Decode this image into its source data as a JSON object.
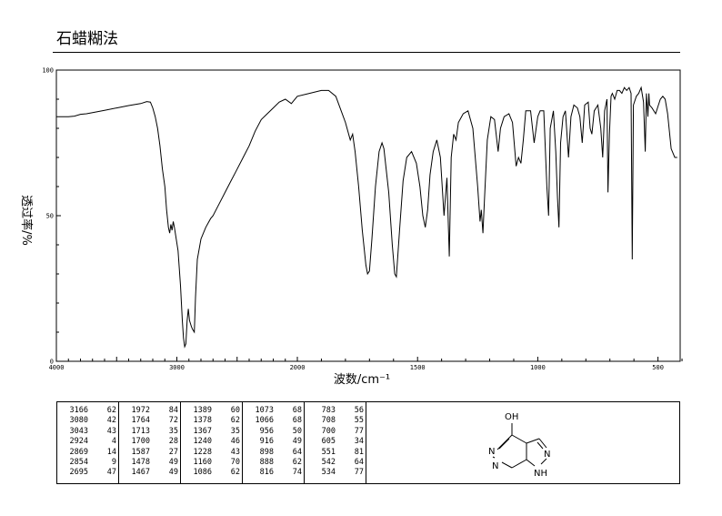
{
  "header": {
    "title": "石蜡糊法"
  },
  "chart_data": {
    "type": "line",
    "ylabel": "透过率/%",
    "xlabel": "波数/cm⁻¹",
    "xlim": [
      4000,
      400
    ],
    "ylim": [
      0,
      100
    ],
    "x_ticks": [
      "4000",
      "3000",
      "2000",
      "1500",
      "1000",
      "500"
    ],
    "y_ticks": [
      "100",
      "50",
      "0"
    ],
    "series": [
      {
        "points": [
          [
            4000,
            84
          ],
          [
            3900,
            84
          ],
          [
            3850,
            84.2
          ],
          [
            3800,
            84.8
          ],
          [
            3750,
            85
          ],
          [
            3700,
            85.4
          ],
          [
            3600,
            86.2
          ],
          [
            3500,
            87
          ],
          [
            3400,
            87.8
          ],
          [
            3300,
            88.5
          ],
          [
            3250,
            89.2
          ],
          [
            3220,
            89
          ],
          [
            3200,
            87
          ],
          [
            3180,
            84
          ],
          [
            3160,
            80
          ],
          [
            3140,
            74
          ],
          [
            3120,
            66
          ],
          [
            3100,
            60
          ],
          [
            3085,
            52
          ],
          [
            3070,
            46
          ],
          [
            3060,
            44
          ],
          [
            3050,
            47
          ],
          [
            3040,
            45
          ],
          [
            3030,
            48
          ],
          [
            3020,
            46
          ],
          [
            2990,
            38
          ],
          [
            2970,
            26
          ],
          [
            2955,
            14
          ],
          [
            2945,
            8
          ],
          [
            2935,
            5
          ],
          [
            2925,
            6
          ],
          [
            2915,
            14
          ],
          [
            2905,
            18
          ],
          [
            2895,
            14
          ],
          [
            2880,
            12
          ],
          [
            2870,
            11
          ],
          [
            2855,
            10
          ],
          [
            2845,
            22
          ],
          [
            2830,
            35
          ],
          [
            2800,
            42
          ],
          [
            2760,
            46
          ],
          [
            2720,
            49
          ],
          [
            2700,
            50
          ],
          [
            2650,
            54
          ],
          [
            2600,
            58
          ],
          [
            2550,
            62
          ],
          [
            2500,
            66
          ],
          [
            2450,
            70
          ],
          [
            2400,
            74
          ],
          [
            2350,
            79
          ],
          [
            2300,
            83
          ],
          [
            2250,
            85
          ],
          [
            2200,
            87
          ],
          [
            2150,
            89
          ],
          [
            2100,
            90
          ],
          [
            2050,
            88.5
          ],
          [
            2000,
            91
          ],
          [
            1950,
            92
          ],
          [
            1900,
            93
          ],
          [
            1870,
            93
          ],
          [
            1840,
            91
          ],
          [
            1800,
            82
          ],
          [
            1780,
            76
          ],
          [
            1770,
            78
          ],
          [
            1760,
            72
          ],
          [
            1745,
            60
          ],
          [
            1730,
            45
          ],
          [
            1715,
            33
          ],
          [
            1708,
            30
          ],
          [
            1700,
            31
          ],
          [
            1690,
            42
          ],
          [
            1675,
            60
          ],
          [
            1660,
            72
          ],
          [
            1648,
            75
          ],
          [
            1640,
            73
          ],
          [
            1620,
            58
          ],
          [
            1605,
            40
          ],
          [
            1595,
            30
          ],
          [
            1588,
            29
          ],
          [
            1575,
            45
          ],
          [
            1560,
            62
          ],
          [
            1545,
            70
          ],
          [
            1525,
            72
          ],
          [
            1505,
            68
          ],
          [
            1490,
            60
          ],
          [
            1478,
            50
          ],
          [
            1468,
            46
          ],
          [
            1458,
            52
          ],
          [
            1448,
            64
          ],
          [
            1435,
            72
          ],
          [
            1420,
            76
          ],
          [
            1405,
            70
          ],
          [
            1390,
            50
          ],
          [
            1378,
            63
          ],
          [
            1368,
            36
          ],
          [
            1360,
            70
          ],
          [
            1350,
            78
          ],
          [
            1340,
            76
          ],
          [
            1330,
            82
          ],
          [
            1310,
            85
          ],
          [
            1290,
            86
          ],
          [
            1270,
            80
          ],
          [
            1250,
            60
          ],
          [
            1240,
            48
          ],
          [
            1235,
            52
          ],
          [
            1228,
            44
          ],
          [
            1222,
            55
          ],
          [
            1210,
            76
          ],
          [
            1195,
            84
          ],
          [
            1180,
            83
          ],
          [
            1165,
            72
          ],
          [
            1155,
            80
          ],
          [
            1140,
            84
          ],
          [
            1120,
            85
          ],
          [
            1105,
            82
          ],
          [
            1090,
            67
          ],
          [
            1080,
            70
          ],
          [
            1070,
            68
          ],
          [
            1060,
            76
          ],
          [
            1050,
            86
          ],
          [
            1030,
            86
          ],
          [
            1015,
            75
          ],
          [
            1000,
            84
          ],
          [
            990,
            86
          ],
          [
            975,
            86
          ],
          [
            962,
            60
          ],
          [
            955,
            50
          ],
          [
            948,
            80
          ],
          [
            935,
            86
          ],
          [
            925,
            72
          ],
          [
            918,
            56
          ],
          [
            912,
            46
          ],
          [
            905,
            75
          ],
          [
            895,
            84
          ],
          [
            885,
            86
          ],
          [
            880,
            80
          ],
          [
            872,
            70
          ],
          [
            862,
            84
          ],
          [
            850,
            88
          ],
          [
            835,
            87
          ],
          [
            825,
            84
          ],
          [
            815,
            75
          ],
          [
            805,
            88
          ],
          [
            790,
            89
          ],
          [
            782,
            80
          ],
          [
            775,
            78
          ],
          [
            765,
            86
          ],
          [
            750,
            88
          ],
          [
            738,
            80
          ],
          [
            730,
            70
          ],
          [
            722,
            86
          ],
          [
            712,
            90
          ],
          [
            708,
            58
          ],
          [
            702,
            78
          ],
          [
            695,
            91
          ],
          [
            690,
            92
          ],
          [
            680,
            90
          ],
          [
            670,
            93
          ],
          [
            660,
            93
          ],
          [
            650,
            92
          ],
          [
            640,
            94
          ],
          [
            630,
            93
          ],
          [
            620,
            94
          ],
          [
            612,
            92
          ],
          [
            607,
            35
          ],
          [
            602,
            88
          ],
          [
            590,
            91
          ],
          [
            580,
            92
          ],
          [
            570,
            94
          ],
          [
            560,
            89
          ],
          [
            553,
            72
          ],
          [
            548,
            92
          ],
          [
            542,
            84
          ],
          [
            538,
            92
          ],
          [
            535,
            88
          ],
          [
            525,
            87
          ],
          [
            510,
            85
          ],
          [
            498,
            88
          ],
          [
            490,
            90
          ],
          [
            480,
            91
          ],
          [
            470,
            90
          ],
          [
            460,
            85
          ],
          [
            445,
            73
          ],
          [
            430,
            70
          ],
          [
            420,
            70
          ]
        ]
      }
    ],
    "peak_table": [
      [
        [
          "3166",
          "62"
        ],
        [
          "3080",
          "42"
        ],
        [
          "3043",
          "43"
        ],
        [
          "2924",
          "4"
        ],
        [
          "2869",
          "14"
        ],
        [
          "2854",
          "9"
        ],
        [
          "2695",
          "47"
        ]
      ],
      [
        [
          "1972",
          "84"
        ],
        [
          "1764",
          "72"
        ],
        [
          "1713",
          "35"
        ],
        [
          "1700",
          "28"
        ],
        [
          "1587",
          "27"
        ],
        [
          "1478",
          "49"
        ],
        [
          "1467",
          "49"
        ]
      ],
      [
        [
          "1389",
          "60"
        ],
        [
          "1378",
          "62"
        ],
        [
          "1367",
          "35"
        ],
        [
          "1240",
          "46"
        ],
        [
          "1228",
          "43"
        ],
        [
          "1160",
          "70"
        ],
        [
          "1086",
          "62"
        ]
      ],
      [
        [
          "1073",
          "68"
        ],
        [
          "1066",
          "68"
        ],
        [
          "956",
          "50"
        ],
        [
          "916",
          "49"
        ],
        [
          "898",
          "64"
        ],
        [
          "888",
          "62"
        ],
        [
          "816",
          "74"
        ]
      ],
      [
        [
          "783",
          "56"
        ],
        [
          "708",
          "55"
        ],
        [
          "700",
          "77"
        ],
        [
          "605",
          "34"
        ],
        [
          "551",
          "81"
        ],
        [
          "542",
          "64"
        ],
        [
          "534",
          "77"
        ]
      ]
    ]
  },
  "structure": {
    "atoms": {
      "oh": "OH",
      "n_left": "N",
      "n_bottom": "N",
      "n_right": "N",
      "nh": "NH"
    }
  }
}
